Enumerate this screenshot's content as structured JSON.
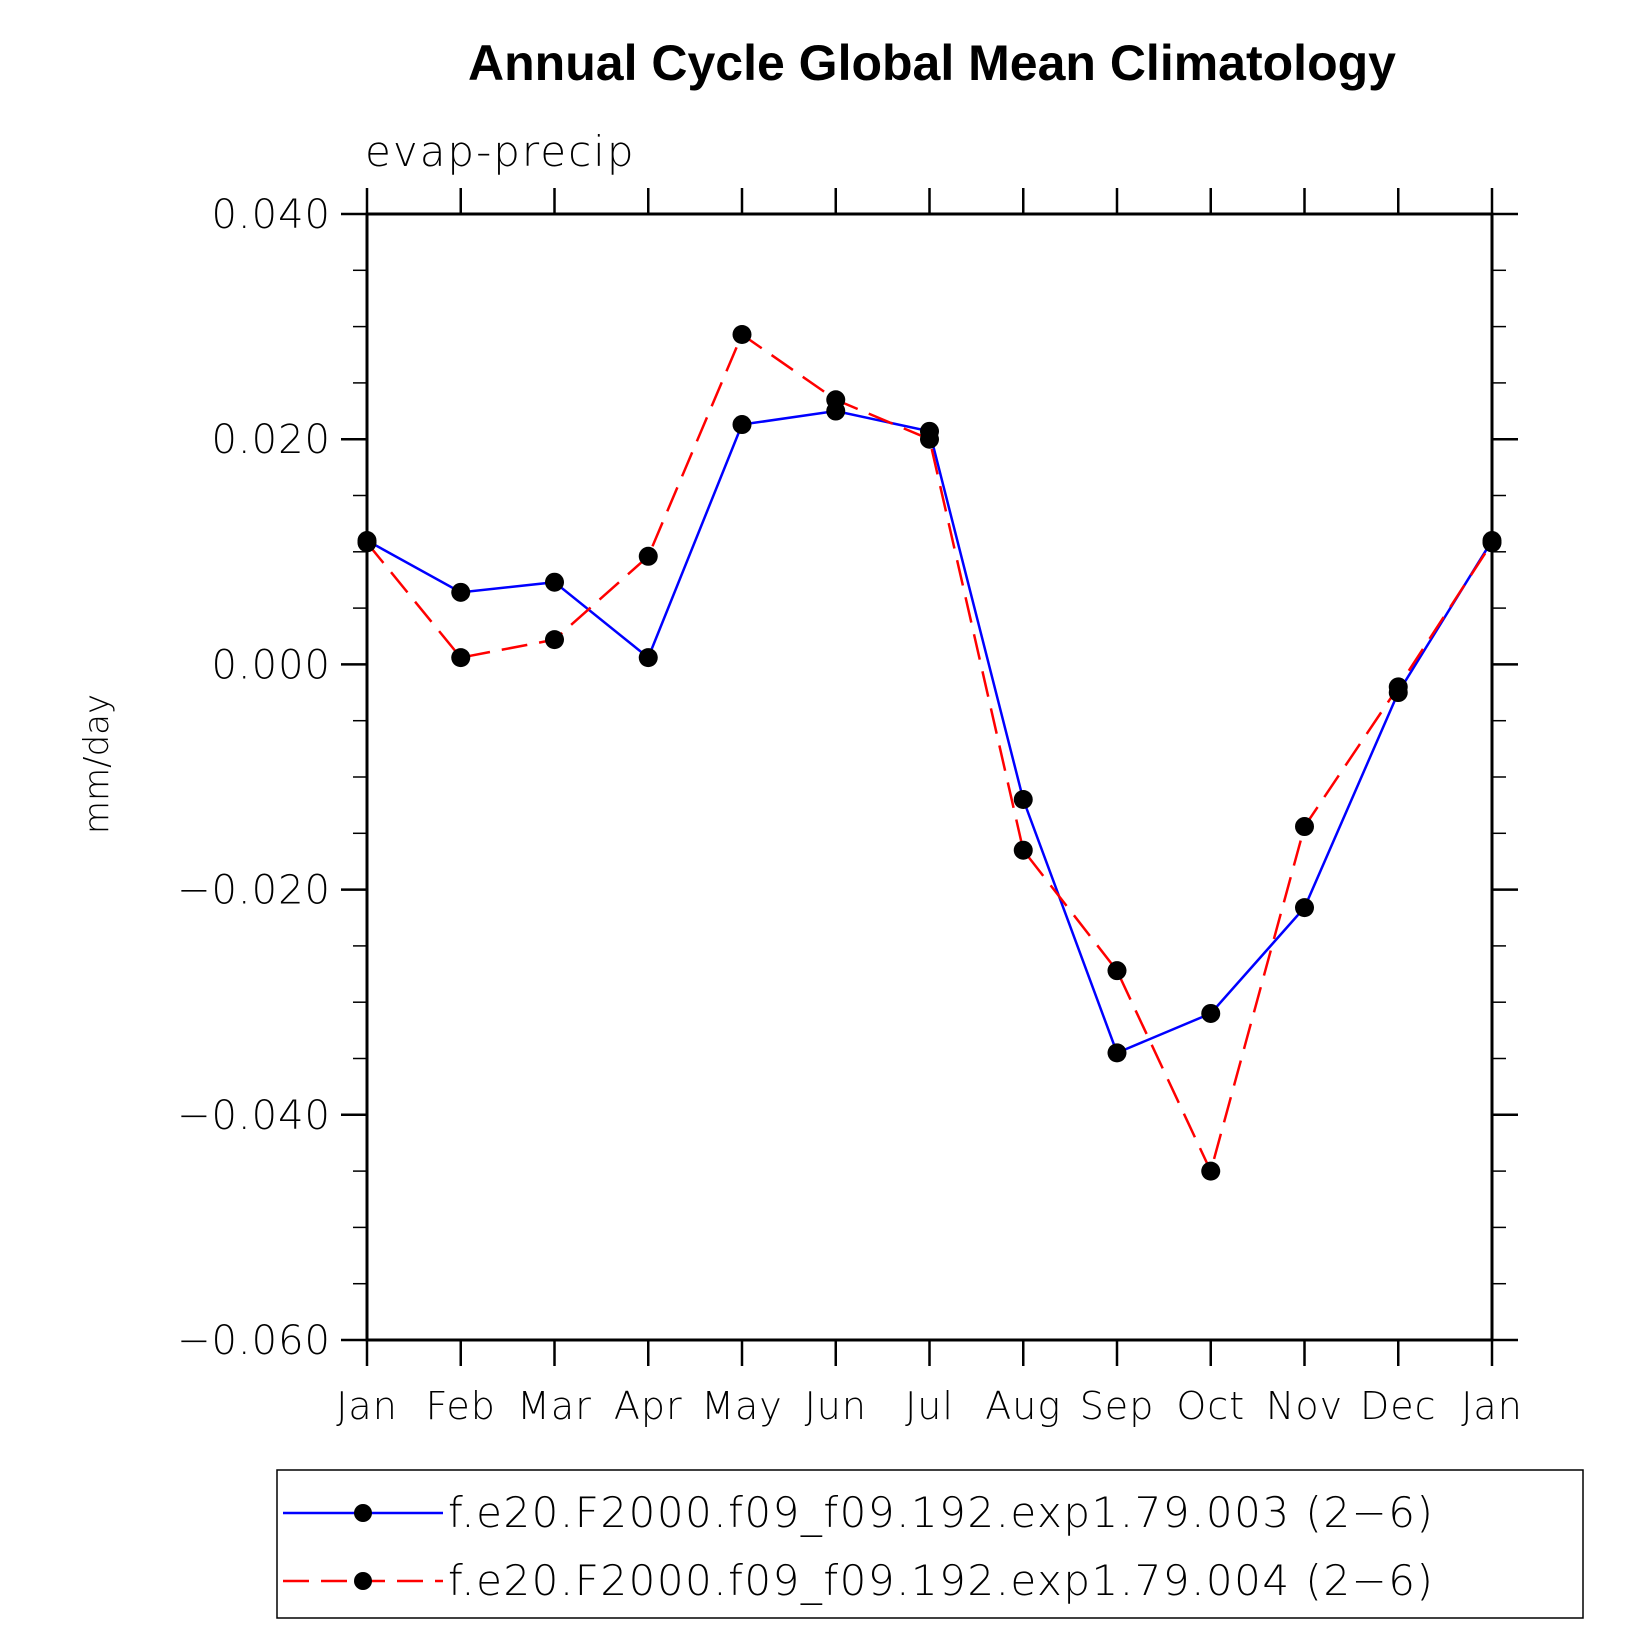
{
  "chart_data": {
    "type": "line",
    "title": "Annual Cycle Global Mean Climatology",
    "subtitle": "evap-precip",
    "xlabel": "",
    "ylabel": "mm/day",
    "categories": [
      "Jan",
      "Feb",
      "Mar",
      "Apr",
      "May",
      "Jun",
      "Jul",
      "Aug",
      "Sep",
      "Oct",
      "Nov",
      "Dec",
      "Jan"
    ],
    "ylim": [
      -0.06,
      0.04
    ],
    "yticks": [
      0.04,
      0.02,
      0.0,
      -0.02,
      -0.04,
      -0.06
    ],
    "ytick_labels": [
      "0.040",
      "0.020",
      "0.000",
      "−0.020",
      "−0.040",
      "−0.060"
    ],
    "series": [
      {
        "name": "f.e20.F2000.f09_f09.192.exp1.79.003 (2−6)",
        "color": "#0000ff",
        "style": "solid",
        "marker": "circle",
        "values": [
          0.011,
          0.0064,
          0.0073,
          0.0006,
          0.0213,
          0.0225,
          0.0207,
          -0.012,
          -0.0345,
          -0.031,
          -0.0216,
          -0.0025,
          0.011
        ]
      },
      {
        "name": "f.e20.F2000.f09_f09.192.exp1.79.004 (2−6)",
        "color": "#ff0000",
        "style": "dashed",
        "marker": "circle",
        "values": [
          0.0108,
          0.0006,
          0.0022,
          0.0096,
          0.0293,
          0.0235,
          0.02,
          -0.0165,
          -0.0272,
          -0.045,
          -0.0144,
          -0.002,
          0.0108
        ]
      }
    ],
    "legend_position": "bottom"
  }
}
